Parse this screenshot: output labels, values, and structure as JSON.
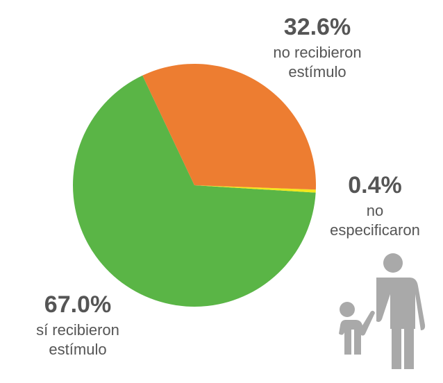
{
  "chart_data": {
    "type": "pie",
    "categories": [
      "no recibieron estímulo",
      "no especificaron",
      "sí recibieron estímulo"
    ],
    "values": [
      32.6,
      0.4,
      67.0
    ],
    "value_labels": [
      "32.6%",
      "0.4%",
      "67.0%"
    ],
    "colors": [
      "#ed7d31",
      "#f4e61b",
      "#5ab546"
    ]
  }
}
